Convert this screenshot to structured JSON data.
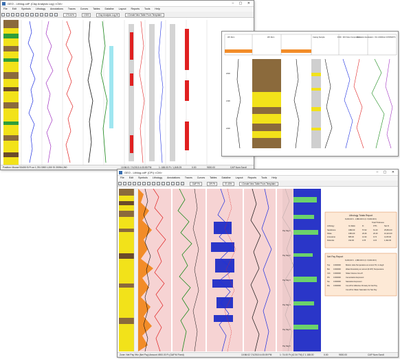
{
  "windows": {
    "back": {
      "title": "GEO - Lithlog.odf* (Clay Analysis Log) <CM>",
      "menu": [
        "File",
        "Edit",
        "Symbols",
        "Lithology",
        "Annotations",
        "Traces",
        "Curves",
        "Tables",
        "Dataline",
        "Layout",
        "Reports",
        "Tools",
        "Help"
      ],
      "zoom": "173.44%",
      "scale": "1:500",
      "template": "Clay Analysis Log.ftl",
      "headers_selector": "<Create New Table From Template>",
      "status_left": "Position: Mouse 93405 SI Ft on 1,781 DBS 1,000 SI 2009/4,260",
      "status_mid": "10:56:01 7/1/2015 4:05:59 PM",
      "status_mid2": "1: 188.00 Ft / 1,845.25",
      "status_right": "CAP Num Scroll",
      "status_icons": "Ready",
      "status_count": "0.00",
      "status_value": "9000.00"
    },
    "middle": {
      "col_headers": [
        "Wtr Rem",
        "Wtr Rem",
        "Casing Sample",
        "FOR - Wtr Flare Composition",
        "Formation Evaluation",
        "OIL CANDLE CONTENTS"
      ],
      "rows": [
        "2000",
        "2100",
        "2200"
      ]
    },
    "front": {
      "title": "GEO - Lithlog.odf* (CPI) <CM>",
      "menu": [
        "File",
        "Edit",
        "Symbols",
        "Lithology",
        "Annotations",
        "Traces",
        "Curves",
        "Tables",
        "Dataline",
        "Layout",
        "Reports",
        "Tools",
        "Help"
      ],
      "zoom": "37.43%",
      "scale": "OR Fit",
      "template": "GAP Fit",
      "headers_selector": "<Create New Table From Template>",
      "track_labels": [
        "Pay flag 1",
        "Pay flag 2",
        "Pay flag 3",
        "Pay flag 4",
        "Pay flag 5",
        "Pay flag 6"
      ],
      "report1": {
        "title": "Lithology Totals Report",
        "subtitle": "8,200,00 ft - 1,880.00 Ft (C: 8,300.00 ft)",
        "col_group": "Total Thickness",
        "headers": [
          "Lithology",
          "Gr-Ratio",
          "Ft",
          "FT%",
          "Net Ft"
        ],
        "rows": [
          [
            "Sandstone",
            "4382.00",
            "57.62",
            "61.40",
            "25,891.00"
          ],
          [
            "Shale",
            "1981.00",
            "26.26",
            "20.40",
            "10,421.00"
          ],
          [
            "Limestone",
            "865.00",
            "12.34",
            "9.74",
            "3,215.00"
          ],
          [
            "Dolomite",
            "312.00",
            "3.78",
            "4.15",
            "1,402.00"
          ]
        ]
      },
      "report2": {
        "title": "Net Pay Report",
        "subtitle": "8,200,00 ft - 1,880.00 Ft (C: 8,300.00 ft)",
        "rows": [
          [
            "Top",
            "0.000000",
            "Bottom Hole Temperature at current TD, in degF"
          ],
          [
            "Bot",
            "0.000000",
            "Water Resistivity at current (R-WT) Temperature"
          ],
          [
            "Vsh",
            "0.000000",
            "Shale Volume Cut-off"
          ],
          [
            "Phi",
            "0.000000",
            "Cementation Exponent"
          ],
          [
            "Sw",
            "0.000000",
            "Saturation Exponent"
          ],
          [
            "Rw",
            "0.000000",
            "Cut-off for Effective Porosity for Net Pay"
          ],
          [
            "",
            "",
            "Cut-off for Water Saturation for Net Pay"
          ]
        ]
      },
      "status_left": "Zone: Net Pay 9Hz (Net Pay) Amount 4900.00 Ft (GAP.M Fixed)",
      "status_mid": "10:56:02 7/1/2015 4:05:09 PM",
      "status_mid2": "1: 74.00 Ft (42.34 TM) Z 1.188.00",
      "status_right": "CAP Num Scroll",
      "status_count": "0.00",
      "status_value": "9000.00"
    }
  },
  "colors": {
    "lith_sand": "#f2e21a",
    "lith_shale": "#8b6a3c",
    "lith_green": "#2e9e3a",
    "curve_blue": "#1c2ee0",
    "curve_red": "#e02020",
    "curve_green": "#1a8a1a",
    "curve_purple": "#a030c0",
    "pay_blue": "#2a36c8",
    "pay_green": "#6bd26b",
    "report_bg": "#fde9d6",
    "report_border": "#d9864a",
    "grid_pink": "#f6d3d3",
    "orange_fill": "#f28c28"
  }
}
